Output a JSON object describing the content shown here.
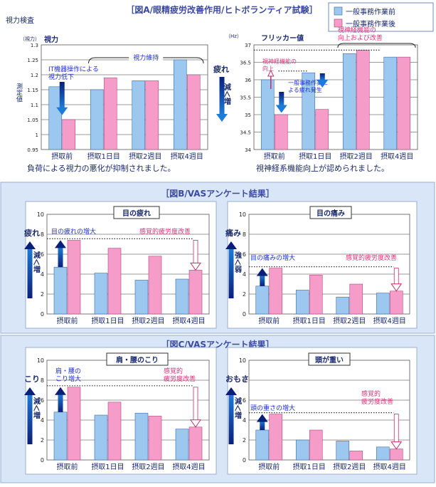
{
  "legend": {
    "before": "一般事務作業前",
    "after": "一般事務作業後"
  },
  "colors": {
    "before": "#9cc7ef",
    "after": "#f59cc8",
    "arrow": "#0b2a8c",
    "pinkText": "#e0307a",
    "blueText": "#1d2fd0",
    "sectionTitle": "#3c4aa0",
    "panelBg": "#d9e6f7",
    "panelBorder": "#9aaed4"
  },
  "sectionA": {
    "title": "［図A/眼精疲労改善作用/ヒトボランティア試験］",
    "left_tag": "視力検査",
    "caption_left": "負荷による視力の悪化が抑制されました。",
    "caption_right": "視神経系機能向上が認められました。"
  },
  "sectionB": {
    "title": "［図B/VASアンケート結果］"
  },
  "sectionC": {
    "title": "［図C/VASアンケート結果］"
  },
  "chart_data": [
    {
      "type": "bar",
      "panel": "A-left",
      "title": "視力",
      "unit": "（視力）",
      "ylabel": "測定値",
      "categories": [
        "摂取前",
        "摂取1日目",
        "摂取2週目",
        "摂取4週目"
      ],
      "series": [
        {
          "name": "一般事務作業前",
          "values": [
            1.16,
            1.15,
            1.18,
            1.25
          ]
        },
        {
          "name": "一般事務作業後",
          "values": [
            1.05,
            1.19,
            1.18,
            1.2
          ]
        }
      ],
      "ylim": [
        0.95,
        1.3
      ],
      "yticks": [
        "0.95",
        "1",
        "1.05",
        "1.1",
        "1.15",
        "1.2",
        "1.25",
        "1.3"
      ],
      "annotations": {
        "decline": "IT機器操作による\n視力低下",
        "maintain": "視力維持"
      }
    },
    {
      "type": "bar",
      "panel": "A-right",
      "title": "フリッカー値",
      "unit": "（Hz）",
      "side_top": "疲れ",
      "side_arrow": "減＜増",
      "categories": [
        "摂取前",
        "摂取1日目",
        "摂取2週目",
        "摂取4週目"
      ],
      "series": [
        {
          "name": "一般事務作業前",
          "values": [
            36.0,
            36.2,
            36.75,
            36.65
          ]
        },
        {
          "name": "一般事務作業後",
          "values": [
            35.0,
            35.15,
            36.85,
            36.65
          ]
        }
      ],
      "ylim": [
        34,
        37
      ],
      "yticks": [
        "34",
        "34.5",
        "35",
        "35.5",
        "36",
        "36.5",
        "37"
      ],
      "annotations": {
        "fatigue": "一般事務作業に\nよる疲れ発生",
        "improve": "視神経機能の\n向上",
        "improve2": "視神経機能の\n向上および改善"
      }
    },
    {
      "type": "bar",
      "panel": "B-left",
      "title": "目の疲れ",
      "side_top": "疲れ",
      "side_arrow": "減＜増",
      "categories": [
        "摂取前",
        "摂取1日目",
        "摂取2週目",
        "摂取4週目"
      ],
      "series": [
        {
          "name": "一般事務作業前",
          "values": [
            4.7,
            4.1,
            3.4,
            3.5
          ]
        },
        {
          "name": "一般事務作業後",
          "values": [
            7.4,
            6.6,
            5.8,
            4.4
          ]
        }
      ],
      "ylim": [
        0,
        10
      ],
      "yticks": [
        "0",
        "2",
        "4",
        "6",
        "8",
        "10"
      ],
      "annotations": {
        "increase": "目の疲れの増大",
        "improve": "感覚的疲労度改善"
      }
    },
    {
      "type": "bar",
      "panel": "B-right",
      "title": "目の痛み",
      "side_top": "痛み",
      "side_arrow": "強＜弱",
      "categories": [
        "摂取前",
        "摂取1日目",
        "摂取2週目",
        "摂取4週目"
      ],
      "series": [
        {
          "name": "一般事務作業前",
          "values": [
            2.8,
            2.4,
            1.7,
            2.1
          ]
        },
        {
          "name": "一般事務作業後",
          "values": [
            4.6,
            3.9,
            3.0,
            2.3
          ]
        }
      ],
      "ylim": [
        0,
        10
      ],
      "yticks": [
        "0",
        "2",
        "4",
        "6",
        "8",
        "10"
      ],
      "annotations": {
        "increase": "目の痛みの増大",
        "improve": "感覚的疲労度改善"
      }
    },
    {
      "type": "bar",
      "panel": "C-left",
      "title": "肩・腰のこり",
      "side_top": "こり",
      "side_arrow": "減＜増",
      "categories": [
        "摂取前",
        "摂取1日目",
        "摂取2週目",
        "摂取4週目"
      ],
      "series": [
        {
          "name": "一般事務作業前",
          "values": [
            4.8,
            4.5,
            4.7,
            3.1
          ]
        },
        {
          "name": "一般事務作業後",
          "values": [
            7.3,
            5.8,
            4.4,
            3.3
          ]
        }
      ],
      "ylim": [
        0,
        10
      ],
      "yticks": [
        "0",
        "2",
        "4",
        "6",
        "8",
        "10"
      ],
      "annotations": {
        "increase": "肩・腰の\nこり増大",
        "improve": "感覚的\n疲労度改善"
      }
    },
    {
      "type": "bar",
      "panel": "C-right",
      "title": "頭が重い",
      "side_top": "おもさ",
      "side_arrow": "減＜増",
      "categories": [
        "摂取前",
        "摂取1日目",
        "摂取2週目",
        "摂取4週目"
      ],
      "series": [
        {
          "name": "一般事務作業前",
          "values": [
            3.0,
            2.0,
            1.9,
            1.3
          ]
        },
        {
          "name": "一般事務作業後",
          "values": [
            4.6,
            3.0,
            0.9,
            1.1
          ]
        }
      ],
      "ylim": [
        0,
        10
      ],
      "yticks": [
        "0",
        "2",
        "4",
        "6",
        "8",
        "10"
      ],
      "annotations": {
        "increase": "頭の重さの増大",
        "improve": "感覚的\n疲労度改善"
      }
    }
  ]
}
